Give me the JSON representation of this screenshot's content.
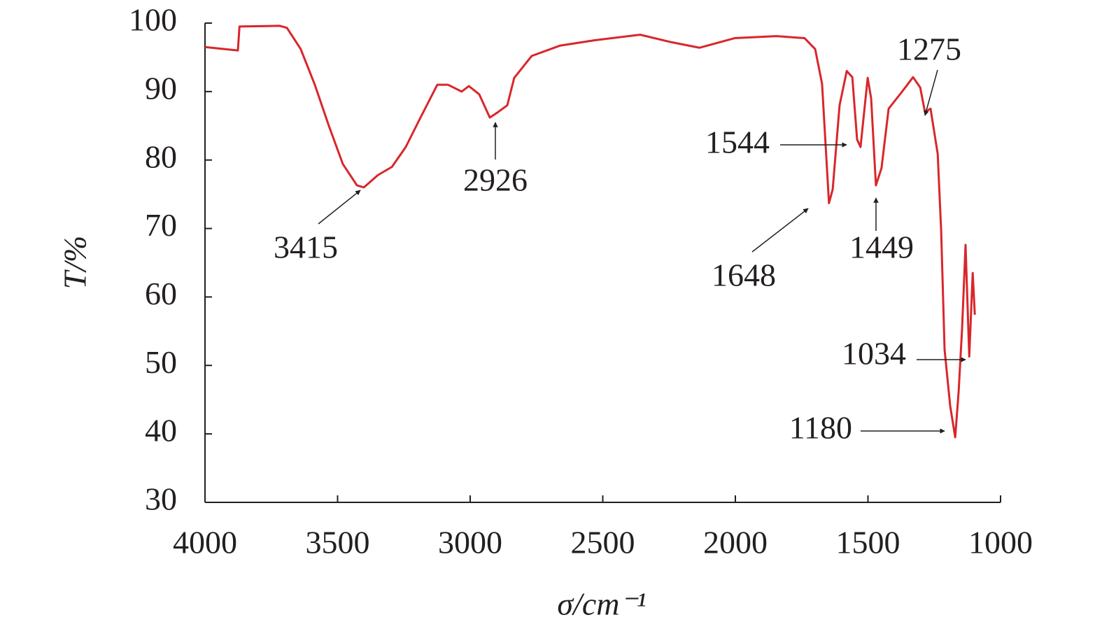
{
  "chart_data": {
    "type": "line",
    "x_label": "σ/cm⁻¹",
    "y_label": "T/%",
    "x": [
      4000,
      3876,
      3870,
      3718,
      3691,
      3639,
      3586,
      3533,
      3480,
      3427,
      3401,
      3348,
      3295,
      3243,
      3190,
      3124,
      3084,
      3032,
      3005,
      2966,
      2926,
      2895,
      2860,
      2834,
      2768,
      2662,
      2530,
      2359,
      2240,
      2135,
      2003,
      1845,
      1739,
      1699,
      1673,
      1647,
      1633,
      1607,
      1580,
      1559,
      1541,
      1528,
      1501,
      1488,
      1470,
      1449,
      1422,
      1369,
      1330,
      1303,
      1285,
      1264,
      1237,
      1224,
      1211,
      1190,
      1171,
      1158,
      1145,
      1132,
      1118,
      1105,
      1097
    ],
    "series": [
      {
        "color": "#d9262b",
        "values": [
          96.5,
          96,
          99.5,
          99.6,
          99.3,
          96.2,
          91,
          85,
          79.4,
          76.3,
          76,
          77.8,
          79,
          81.9,
          86,
          91,
          91,
          90,
          90.8,
          89.6,
          86.2,
          87,
          88,
          92,
          95.2,
          96.7,
          97.5,
          98.3,
          97.2,
          96.4,
          97.8,
          98.1,
          97.8,
          96.2,
          91.1,
          73.7,
          75.7,
          88,
          93,
          92.1,
          83,
          81.9,
          92,
          89,
          76.3,
          78.8,
          87.5,
          90.1,
          92.1,
          90.6,
          87,
          87.5,
          80.9,
          69.7,
          52.3,
          44.1,
          39.5,
          46.2,
          55.4,
          67.6,
          51.3,
          63.5,
          57.4
        ]
      }
    ],
    "annotations": [
      "3415",
      "2926",
      "1648",
      "1449",
      "1544",
      "1275",
      "1034",
      "1180"
    ],
    "xlim": [
      4000,
      1000
    ],
    "xticks": [
      4000,
      3500,
      3000,
      2500,
      2000,
      1500,
      1000
    ],
    "ylim": [
      30,
      100
    ],
    "yticks": [
      30,
      40,
      50,
      60,
      70,
      80,
      90,
      100
    ]
  }
}
